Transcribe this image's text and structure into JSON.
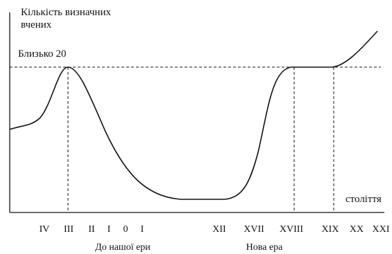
{
  "chart_data": {
    "type": "line",
    "ylabel_lines": [
      "Кількість визначних",
      "вчених"
    ],
    "xlabel": "століття",
    "reference_line": {
      "value": 20,
      "label": "Близько 20"
    },
    "x_ticks": [
      "IV",
      "III",
      "II",
      "I",
      "0",
      "I",
      "XII",
      "XVII",
      "XVIII",
      "XIX",
      "XX",
      "XXI"
    ],
    "eras": [
      "До нашої ери",
      "Нова ера"
    ],
    "series": [
      {
        "points": [
          {
            "x": "IV",
            "y": 7
          },
          {
            "x": "III",
            "y": 20
          },
          {
            "x": "I",
            "y": 9
          },
          {
            "x": "I",
            "y": 3
          },
          {
            "x": "XII",
            "y": 1
          },
          {
            "x": "XVII",
            "y": 5
          },
          {
            "x": "XVIII",
            "y": 20
          },
          {
            "x": "XIX",
            "y": 20
          },
          {
            "x": "XXI",
            "y": 26
          }
        ]
      }
    ],
    "grid": false,
    "colors": {
      "line": "#111111"
    }
  }
}
